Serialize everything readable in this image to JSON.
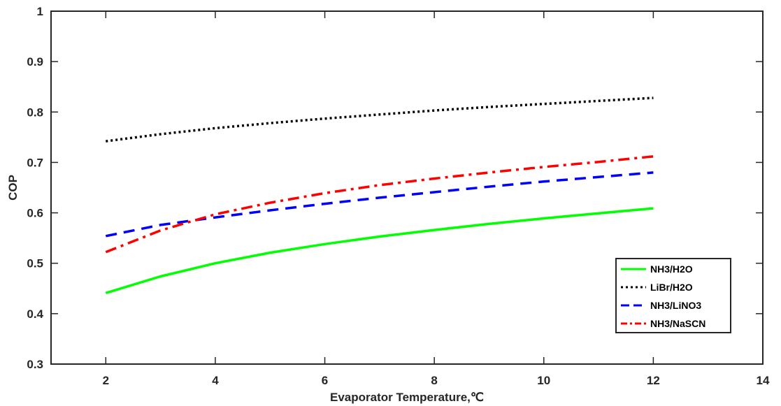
{
  "chart_data": {
    "type": "line",
    "xlabel": "Evaporator Temperature,℃",
    "ylabel": "COP",
    "xlim": [
      1,
      14
    ],
    "ylim": [
      0.3,
      1.0
    ],
    "x_ticks": [
      "2",
      "4",
      "6",
      "8",
      "10",
      "12",
      "14"
    ],
    "y_ticks": [
      "0.3",
      "0.4",
      "0.5",
      "0.6",
      "0.7",
      "0.8",
      "0.9",
      "1"
    ],
    "x": [
      2,
      3,
      4,
      5,
      6,
      7,
      8,
      9,
      10,
      11,
      12
    ],
    "series": [
      {
        "name": "NH3/H2O",
        "color": "#00ff00",
        "dash": "solid",
        "values": [
          0.441,
          0.474,
          0.5,
          0.521,
          0.538,
          0.553,
          0.566,
          0.578,
          0.589,
          0.599,
          0.609
        ]
      },
      {
        "name": "LiBr/H2O",
        "color": "#000000",
        "dash": "dotted",
        "values": [
          0.742,
          0.756,
          0.768,
          0.778,
          0.787,
          0.795,
          0.803,
          0.81,
          0.816,
          0.822,
          0.828
        ]
      },
      {
        "name": "NH3/LiNO3",
        "color": "#0000ff",
        "dash": "dashed",
        "values": [
          0.554,
          0.576,
          0.591,
          0.605,
          0.618,
          0.63,
          0.641,
          0.652,
          0.662,
          0.671,
          0.68
        ]
      },
      {
        "name": "NH3/NaSCN",
        "color": "#ff0000",
        "dash": "dashdot",
        "values": [
          0.522,
          0.565,
          0.597,
          0.62,
          0.639,
          0.655,
          0.668,
          0.68,
          0.691,
          0.701,
          0.712
        ]
      }
    ],
    "grid": false,
    "legend_position": "bottom-right"
  }
}
